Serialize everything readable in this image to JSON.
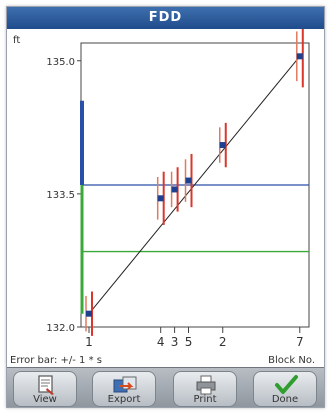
{
  "window": {
    "title": "FDD"
  },
  "chart_data": {
    "type": "scatter",
    "title": "",
    "ylabel": "ft",
    "xlabel": "Block No.",
    "footer_note": "Error bar: +/- 1 * s",
    "ylim": [
      132.0,
      135.2
    ],
    "y_ticks": [
      132.0,
      133.5,
      135.0
    ],
    "y_tick_labels": [
      "132.0",
      "133.5",
      "135.0"
    ],
    "x_tick_labels": [
      "1",
      "4",
      "3",
      "5",
      "2",
      "7"
    ],
    "points": [
      {
        "block": "1",
        "y": 132.15,
        "err": 0.25
      },
      {
        "block": "4",
        "y": 133.45,
        "err": 0.3
      },
      {
        "block": "3",
        "y": 133.55,
        "err": 0.25
      },
      {
        "block": "5",
        "y": 133.65,
        "err": 0.3
      },
      {
        "block": "2",
        "y": 134.05,
        "err": 0.25
      },
      {
        "block": "7",
        "y": 135.05,
        "err": 0.35
      }
    ],
    "fit_line": {
      "from": 132.15,
      "to": 135.05
    },
    "reference_lines": [
      {
        "name": "blue",
        "y": 133.6,
        "color": "#2a4fa8"
      },
      {
        "name": "green",
        "y": 132.85,
        "color": "#3aa83a"
      }
    ],
    "colors": {
      "point": "#1f3f8f",
      "errorbar": "#d9372b",
      "errorbar_alt": "#e07a5f",
      "fit": "#222222",
      "axis": "#444444",
      "blue_band": "#2a4fa8",
      "green_band": "#3aa83a"
    }
  },
  "toolbar": {
    "buttons": [
      {
        "label": "View",
        "icon": "view-icon"
      },
      {
        "label": "Export",
        "icon": "export-icon"
      },
      {
        "label": "Print",
        "icon": "print-icon"
      },
      {
        "label": "Done",
        "icon": "checkmark-icon"
      }
    ]
  }
}
